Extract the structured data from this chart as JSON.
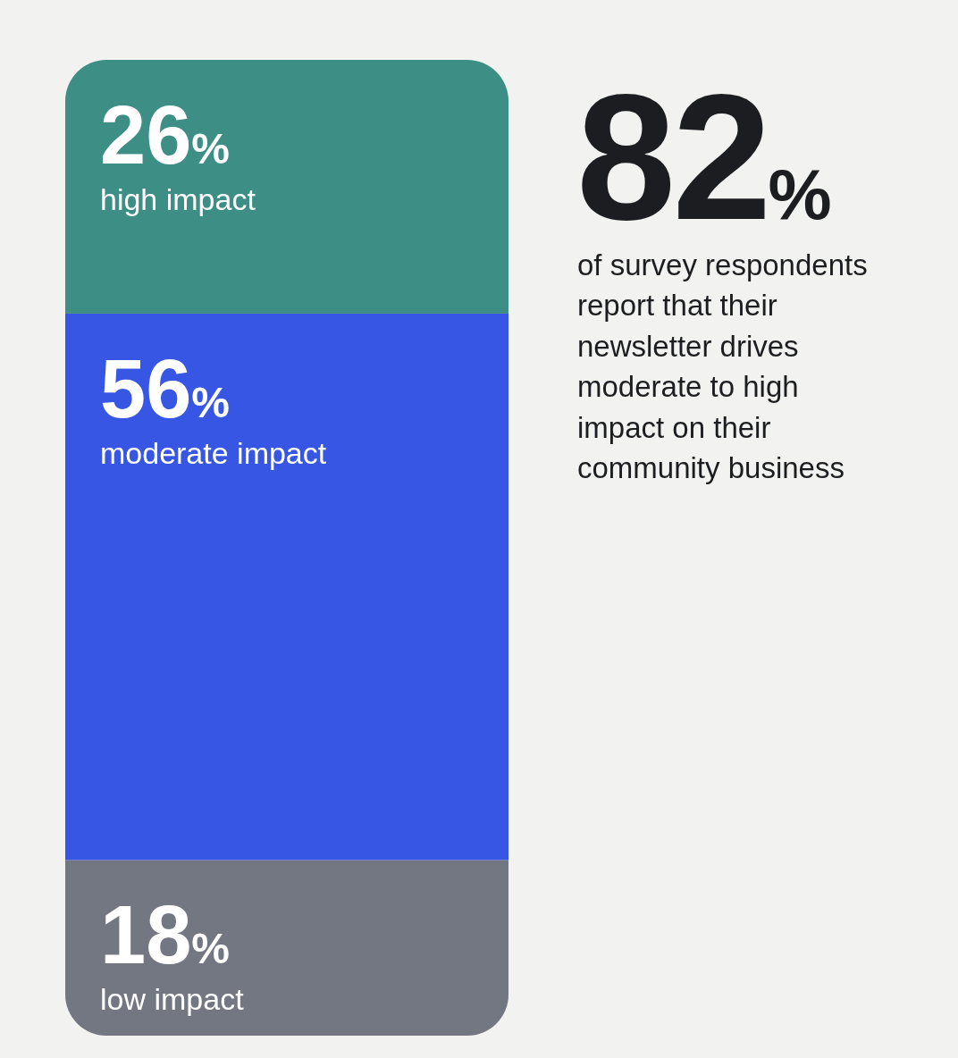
{
  "chart_data": {
    "type": "bar",
    "stacked": true,
    "categories": [
      null
    ],
    "series": [
      {
        "name": "low impact",
        "color": "#737782",
        "values": [
          18
        ],
        "value_labels": [
          "18%"
        ]
      },
      {
        "name": "moderate impact",
        "color": "#3656e3",
        "values": [
          56
        ],
        "value_labels": [
          "56%"
        ]
      },
      {
        "name": "high impact",
        "color": "#3d8f86",
        "values": [
          26
        ],
        "value_labels": [
          "26%"
        ]
      }
    ],
    "annotations": [
      "82%",
      "of survey respondents report that their newsletter drives moderate to high impact on their community business"
    ]
  }
}
